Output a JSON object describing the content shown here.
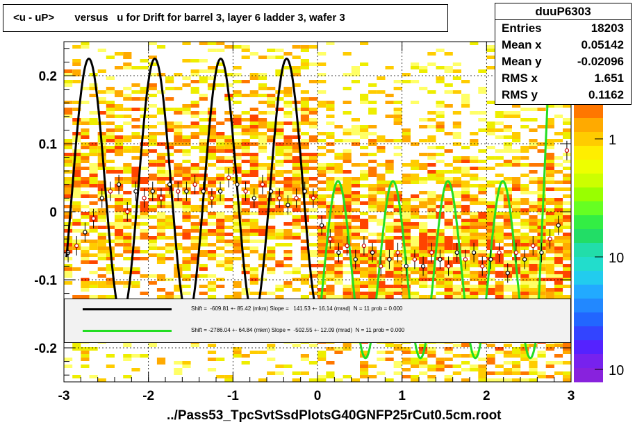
{
  "title": "<u - uP>       versus   u for Drift for barrel 3, layer 6 ladder 3, wafer 3",
  "stats": {
    "name": "duuP6303",
    "rows": [
      {
        "label": "Entries",
        "value": "18203"
      },
      {
        "label": "Mean x",
        "value": "0.05142"
      },
      {
        "label": "Mean y",
        "value": "-0.02096"
      },
      {
        "label": "RMS x",
        "value": "1.651"
      },
      {
        "label": "RMS y",
        "value": "0.1162"
      }
    ]
  },
  "legend": [
    {
      "color": "#000000",
      "text": "Shift =  -609.81 +- 85.42 (mkm) Slope =   141.53 +- 16.14 (mrad)  N = 11 prob = 0.000"
    },
    {
      "color": "#22dd22",
      "text": "Shift = -2786.04 +- 64.84 (mkm) Slope =  -502.55 +- 12.09 (mrad)  N = 11 prob = 0.000"
    }
  ],
  "footer": "../Pass53_TpcSvtSsdPlotsG40GNFP25rCut0.5cm.root",
  "chart_data": {
    "type": "heatmap",
    "title": "<u - uP>       versus   u for Drift for barrel 3, layer 6 ladder 3, wafer 3",
    "xlim": [
      -3,
      3
    ],
    "ylim": [
      -0.25,
      0.25
    ],
    "x_ticks": [
      "-3",
      "-2",
      "-1",
      "0",
      "1",
      "2",
      "3"
    ],
    "y_ticks": [
      "-0.2",
      "-0.1",
      "0",
      "0.1",
      "0.2"
    ],
    "grid": true,
    "colorbar_labels": [
      "1",
      "10",
      "10"
    ],
    "colors": {
      "black_fit": "#000000",
      "green_fit": "#22dd22"
    },
    "profile": {
      "x": [
        -2.95,
        -2.85,
        -2.75,
        -2.65,
        -2.55,
        -2.45,
        -2.35,
        -2.25,
        -2.15,
        -2.05,
        -1.95,
        -1.85,
        -1.75,
        -1.65,
        -1.55,
        -1.45,
        -1.35,
        -1.25,
        -1.15,
        -1.05,
        -0.95,
        -0.85,
        -0.75,
        -0.65,
        -0.55,
        -0.45,
        -0.35,
        -0.25,
        -0.15,
        -0.05,
        0.05,
        0.15,
        0.25,
        0.35,
        0.45,
        0.55,
        0.65,
        0.75,
        0.85,
        0.95,
        1.05,
        1.15,
        1.25,
        1.35,
        1.45,
        1.55,
        1.65,
        1.75,
        1.85,
        1.95,
        2.05,
        2.15,
        2.25,
        2.35,
        2.45,
        2.55,
        2.65,
        2.75,
        2.85,
        2.95
      ],
      "y": [
        -0.06,
        -0.05,
        -0.03,
        -0.01,
        0.02,
        0.03,
        0.04,
        0.0,
        0.03,
        0.02,
        0.03,
        0.02,
        0.04,
        0.03,
        0.03,
        0.04,
        0.03,
        0.02,
        0.03,
        0.05,
        0.04,
        0.03,
        0.02,
        0.04,
        0.03,
        0.02,
        0.01,
        0.02,
        0.03,
        0.02,
        -0.02,
        -0.04,
        -0.06,
        -0.05,
        -0.07,
        -0.05,
        -0.06,
        -0.08,
        -0.07,
        -0.06,
        -0.08,
        -0.07,
        -0.08,
        -0.06,
        -0.07,
        -0.08,
        -0.06,
        -0.07,
        -0.06,
        -0.08,
        -0.07,
        -0.06,
        -0.09,
        -0.06,
        -0.07,
        -0.05,
        -0.06,
        -0.04,
        -0.02,
        0.09
      ]
    }
  }
}
